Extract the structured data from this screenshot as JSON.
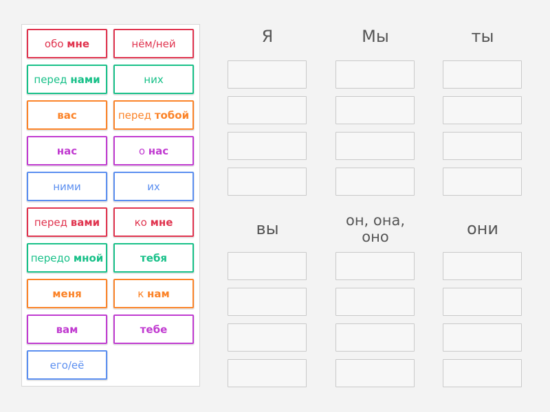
{
  "colors": {
    "red": "#e0334e",
    "green": "#17c088",
    "orange": "#fb8328",
    "purple": "#c03ad0",
    "blue": "#5a8ef0"
  },
  "tiles": [
    {
      "pre": "обо ",
      "bold": "мне",
      "color": "red"
    },
    {
      "pre": "нём/ней",
      "bold": "",
      "color": "red"
    },
    {
      "pre": "перед ",
      "bold": "нами",
      "color": "green"
    },
    {
      "pre": "них",
      "bold": "",
      "color": "green"
    },
    {
      "pre": "",
      "bold": "вас",
      "color": "orange"
    },
    {
      "pre": "перед ",
      "bold": "тобой",
      "color": "orange"
    },
    {
      "pre": "",
      "bold": "нас",
      "color": "purple"
    },
    {
      "pre": "о ",
      "bold": "нас",
      "color": "purple"
    },
    {
      "pre": "ними",
      "bold": "",
      "color": "blue"
    },
    {
      "pre": "их",
      "bold": "",
      "color": "blue"
    },
    {
      "pre": "перед ",
      "bold": "вами",
      "color": "red"
    },
    {
      "pre": "ко ",
      "bold": "мне",
      "color": "red"
    },
    {
      "pre": "передо ",
      "bold": "мной",
      "color": "green"
    },
    {
      "pre": "",
      "bold": "тебя",
      "color": "green"
    },
    {
      "pre": "",
      "bold": "меня",
      "color": "orange"
    },
    {
      "pre": "к ",
      "bold": "нам",
      "color": "orange"
    },
    {
      "pre": "",
      "bold": "вам",
      "color": "purple"
    },
    {
      "pre": "",
      "bold": "тебе",
      "color": "purple"
    },
    {
      "pre": "его/её",
      "bold": "",
      "color": "blue"
    }
  ],
  "categories": [
    {
      "label": "Я",
      "slots": 4
    },
    {
      "label": "Мы",
      "slots": 4
    },
    {
      "label": "ты",
      "slots": 4
    },
    {
      "label": "вы",
      "slots": 4
    },
    {
      "label": "он, она, оно",
      "slots": 4
    },
    {
      "label": "они",
      "slots": 4
    }
  ]
}
